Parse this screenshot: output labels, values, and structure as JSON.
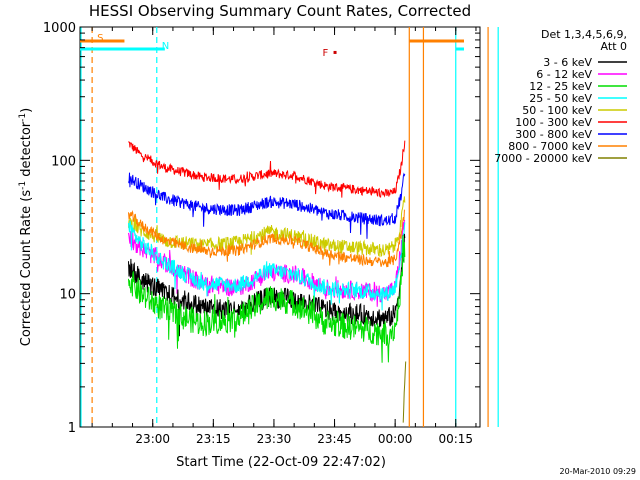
{
  "chart_data": {
    "type": "line",
    "title": "HESSI Observing Summary Count Rates, Corrected",
    "xlabel": "Start Time (22-Oct-09 22:47:02)",
    "ylabel_main": "Corrected Count Rate (s",
    "ylabel_exp1": "-1",
    "ylabel_mid": " detector",
    "ylabel_exp2": "-1",
    "ylabel_close": ")",
    "yscale": "log",
    "ylim": [
      1,
      1000
    ],
    "xlim_minutes": [
      -5,
      94
    ],
    "x_ticks": [
      {
        "label": "23:00",
        "min": 13
      },
      {
        "label": "23:15",
        "min": 28
      },
      {
        "label": "23:30",
        "min": 43
      },
      {
        "label": "23:45",
        "min": 58
      },
      {
        "label": "00:00",
        "min": 73
      },
      {
        "label": "00:15",
        "min": 88
      }
    ],
    "y_ticks": [
      {
        "label": "1",
        "value": 1
      },
      {
        "label": "10",
        "value": 10
      },
      {
        "label": "100",
        "value": 100
      },
      {
        "label": "1000",
        "value": 1000
      }
    ],
    "legend": {
      "header1": "Det 1,3,4,5,6,9,",
      "header2": "Att 0",
      "entries": [
        {
          "label": "3 - 6 keV",
          "color": "#000000"
        },
        {
          "label": "6 - 12 keV",
          "color": "#ff00ff"
        },
        {
          "label": "12 - 25 keV",
          "color": "#00dd00"
        },
        {
          "label": "25 - 50 keV",
          "color": "#00ffff"
        },
        {
          "label": "50 - 100 keV",
          "color": "#cccc00"
        },
        {
          "label": "100 - 300 keV",
          "color": "#ff0000"
        },
        {
          "label": "300 - 800 keV",
          "color": "#0000ff"
        },
        {
          "label": "800 - 7000 keV",
          "color": "#ff8000"
        },
        {
          "label": "7000 - 20000 keV",
          "color": "#808000"
        }
      ]
    },
    "series": [
      {
        "name": "100 - 300 keV",
        "color": "#ff0000",
        "noise": 0.035,
        "points": [
          [
            7,
            135
          ],
          [
            10,
            110
          ],
          [
            16,
            88
          ],
          [
            25,
            75
          ],
          [
            34,
            72
          ],
          [
            42,
            80
          ],
          [
            48,
            77
          ],
          [
            56,
            64
          ],
          [
            64,
            60
          ],
          [
            71,
            56
          ],
          [
            73,
            58
          ],
          [
            74.5,
            90
          ],
          [
            75.5,
            150
          ]
        ]
      },
      {
        "name": "300 - 800 keV",
        "color": "#0000ff",
        "noise": 0.045,
        "points": [
          [
            7,
            75
          ],
          [
            10,
            65
          ],
          [
            16,
            52
          ],
          [
            25,
            44
          ],
          [
            34,
            42
          ],
          [
            42,
            49
          ],
          [
            48,
            47
          ],
          [
            56,
            40
          ],
          [
            64,
            37
          ],
          [
            71,
            35
          ],
          [
            73,
            37
          ],
          [
            74.5,
            55
          ],
          [
            75.5,
            85
          ]
        ]
      },
      {
        "name": "50 - 100 keV",
        "color": "#cccc00",
        "noise": 0.055,
        "points": [
          [
            7,
            35
          ],
          [
            10,
            30
          ],
          [
            16,
            25
          ],
          [
            25,
            23
          ],
          [
            34,
            24
          ],
          [
            42,
            29
          ],
          [
            48,
            27
          ],
          [
            56,
            23
          ],
          [
            64,
            22
          ],
          [
            71,
            21
          ],
          [
            73,
            23
          ],
          [
            74.5,
            34
          ],
          [
            75.5,
            55
          ]
        ]
      },
      {
        "name": "800 - 7000 keV",
        "color": "#ff8000",
        "noise": 0.04,
        "points": [
          [
            7,
            40
          ],
          [
            10,
            33
          ],
          [
            16,
            25
          ],
          [
            25,
            21
          ],
          [
            34,
            21
          ],
          [
            42,
            26
          ],
          [
            48,
            25
          ],
          [
            56,
            20
          ],
          [
            64,
            18
          ],
          [
            71,
            17
          ],
          [
            73,
            18
          ],
          [
            74.5,
            28
          ],
          [
            75.5,
            45
          ]
        ]
      },
      {
        "name": "6 - 12 keV",
        "color": "#ff00ff",
        "noise": 0.07,
        "points": [
          [
            7,
            27
          ],
          [
            10,
            22
          ],
          [
            16,
            17
          ],
          [
            25,
            12
          ],
          [
            34,
            11
          ],
          [
            42,
            14.5
          ],
          [
            48,
            14
          ],
          [
            56,
            11
          ],
          [
            64,
            10.5
          ],
          [
            71,
            10
          ],
          [
            73,
            11
          ],
          [
            74.5,
            22
          ],
          [
            75.5,
            40
          ]
        ]
      },
      {
        "name": "25 - 50 keV",
        "color": "#00ffff",
        "noise": 0.06,
        "points": [
          [
            7,
            32
          ],
          [
            10,
            24
          ],
          [
            16,
            17
          ],
          [
            25,
            12
          ],
          [
            34,
            11.5
          ],
          [
            42,
            15
          ],
          [
            48,
            14
          ],
          [
            56,
            11
          ],
          [
            64,
            10.5
          ],
          [
            71,
            10
          ],
          [
            73,
            11
          ],
          [
            74.5,
            20
          ],
          [
            75.5,
            35
          ]
        ]
      },
      {
        "name": "3 - 6 keV",
        "color": "#000000",
        "noise": 0.08,
        "points": [
          [
            7,
            16
          ],
          [
            10,
            13
          ],
          [
            16,
            10
          ],
          [
            25,
            8
          ],
          [
            34,
            7.5
          ],
          [
            42,
            9.5
          ],
          [
            48,
            9
          ],
          [
            56,
            7.5
          ],
          [
            64,
            7
          ],
          [
            71,
            6.5
          ],
          [
            73,
            7
          ],
          [
            74.5,
            14
          ],
          [
            75.5,
            30
          ]
        ]
      },
      {
        "name": "12 - 25 keV",
        "color": "#00dd00",
        "noise": 0.1,
        "points": [
          [
            7,
            13
          ],
          [
            10,
            10
          ],
          [
            16,
            7.5
          ],
          [
            25,
            6
          ],
          [
            34,
            6.5
          ],
          [
            42,
            9.5
          ],
          [
            48,
            8.5
          ],
          [
            56,
            6
          ],
          [
            64,
            5.5
          ],
          [
            71,
            5
          ],
          [
            73,
            5.5
          ],
          [
            74.5,
            12
          ],
          [
            75.5,
            25
          ]
        ]
      },
      {
        "name": "7000 - 20000 keV",
        "color": "#808000",
        "noise": 0.02,
        "points": [
          [
            75,
            1.05
          ],
          [
            75.3,
            2
          ],
          [
            75.6,
            3
          ]
        ]
      }
    ],
    "orange_markers": [
      {
        "label": "S",
        "min": -2
      },
      {
        "min": 76.5
      },
      {
        "min": 96
      }
    ],
    "cyan_markers": [
      {
        "label": "N",
        "min": 14
      },
      {
        "min": 98.5
      }
    ],
    "flare_marker": {
      "label": "F",
      "min": 58,
      "value": 650
    },
    "colors": {
      "s_color": "#ff8000",
      "n_color": "#00ffff",
      "f_color": "#cc0000"
    }
  },
  "footer": {
    "timestamp": "20-Mar-2010 09:29"
  }
}
